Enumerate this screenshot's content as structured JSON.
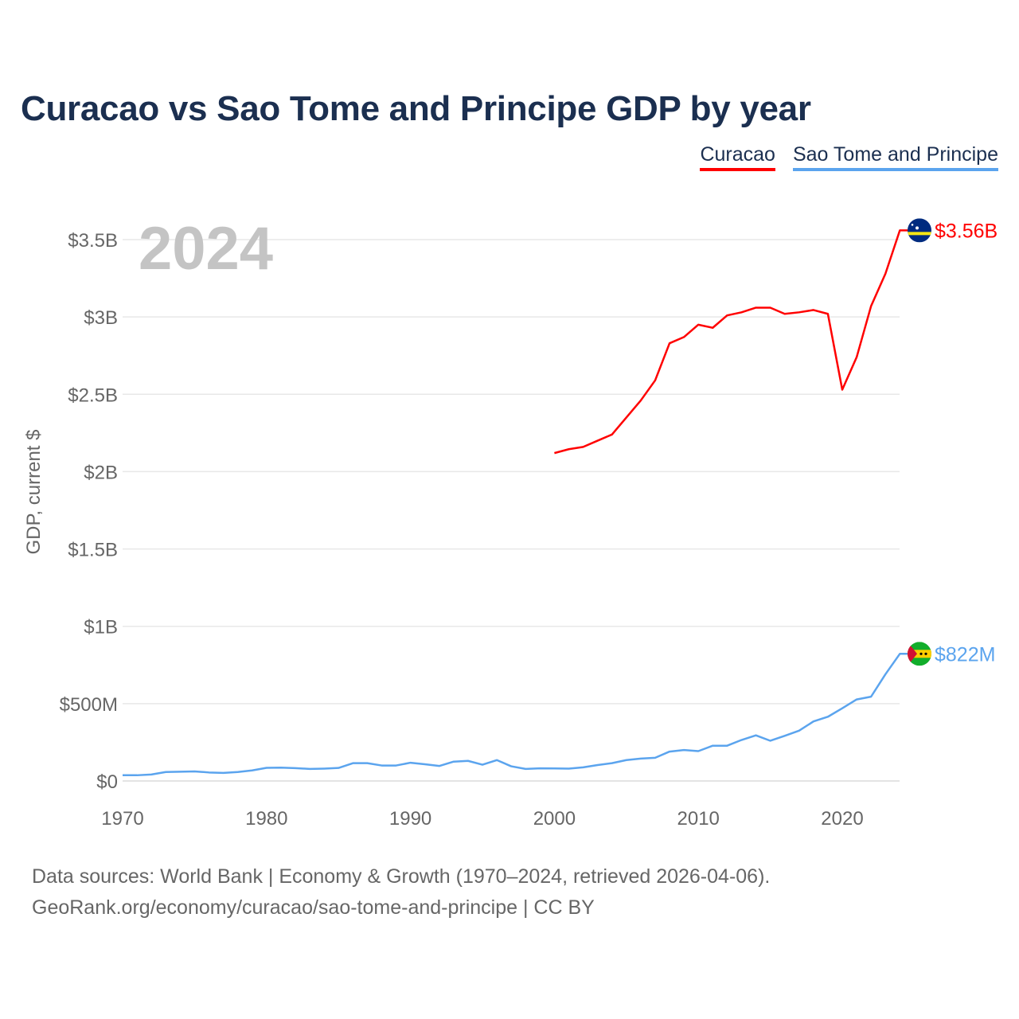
{
  "chart_data": {
    "type": "line",
    "title": "Curacao vs Sao Tome and Principe GDP by year",
    "xlabel": "",
    "ylabel": "GDP, current $",
    "xlim": [
      1970,
      2024
    ],
    "ylim": [
      0,
      3.7
    ],
    "x_ticks": [
      1970,
      1980,
      1990,
      2000,
      2010,
      2020
    ],
    "x_tick_labels": [
      "1970",
      "1980",
      "1990",
      "2000",
      "2010",
      "2020"
    ],
    "y_ticks": [
      0,
      0.5,
      1,
      1.5,
      2,
      2.5,
      3,
      3.5
    ],
    "y_tick_labels": [
      "$0",
      "$500M",
      "$1B",
      "$1.5B",
      "$2B",
      "$2.5B",
      "$3B",
      "$3.5B"
    ],
    "grid": true,
    "legend_placement": "top-right",
    "year_label": "2024",
    "units": "billions USD",
    "series": [
      {
        "name": "Curacao",
        "color": "#ff0000",
        "end_label": "$3.56B",
        "flag": "curacao-flag",
        "x": [
          2000,
          2001,
          2002,
          2003,
          2004,
          2005,
          2006,
          2007,
          2008,
          2009,
          2010,
          2011,
          2012,
          2013,
          2014,
          2015,
          2016,
          2017,
          2018,
          2019,
          2020,
          2021,
          2022,
          2023,
          2024
        ],
        "values": [
          2.12,
          2.145,
          2.16,
          2.2,
          2.24,
          2.35,
          2.46,
          2.59,
          2.83,
          2.87,
          2.95,
          2.93,
          3.01,
          3.03,
          3.06,
          3.06,
          3.02,
          3.03,
          3.045,
          3.02,
          2.53,
          2.74,
          3.07,
          3.28,
          3.56
        ]
      },
      {
        "name": "Sao Tome and Principe",
        "color": "#5ba4ee",
        "end_label": "$822M",
        "flag": "sao-tome-flag",
        "x": [
          1970,
          1971,
          1972,
          1973,
          1974,
          1975,
          1976,
          1977,
          1978,
          1979,
          1980,
          1981,
          1982,
          1983,
          1984,
          1985,
          1986,
          1987,
          1988,
          1989,
          1990,
          1991,
          1992,
          1993,
          1994,
          1995,
          1996,
          1997,
          1998,
          1999,
          2000,
          2001,
          2002,
          2003,
          2004,
          2005,
          2006,
          2007,
          2008,
          2009,
          2010,
          2011,
          2012,
          2013,
          2014,
          2015,
          2016,
          2017,
          2018,
          2019,
          2020,
          2021,
          2022,
          2023,
          2024
        ],
        "values": [
          0.037,
          0.037,
          0.042,
          0.058,
          0.06,
          0.062,
          0.055,
          0.052,
          0.058,
          0.068,
          0.085,
          0.086,
          0.083,
          0.078,
          0.08,
          0.084,
          0.115,
          0.115,
          0.1,
          0.1,
          0.118,
          0.108,
          0.097,
          0.125,
          0.13,
          0.105,
          0.135,
          0.095,
          0.078,
          0.082,
          0.081,
          0.08,
          0.088,
          0.103,
          0.115,
          0.135,
          0.145,
          0.15,
          0.19,
          0.2,
          0.193,
          0.228,
          0.228,
          0.265,
          0.295,
          0.26,
          0.292,
          0.325,
          0.385,
          0.415,
          0.47,
          0.527,
          0.545,
          0.69,
          0.822
        ]
      }
    ]
  },
  "footer": {
    "line1": "Data sources: World Bank | Economy & Growth (1970–2024, retrieved 2026-04-06).",
    "line2": "GeoRank.org/economy/curacao/sao-tome-and-principe | CC BY"
  }
}
